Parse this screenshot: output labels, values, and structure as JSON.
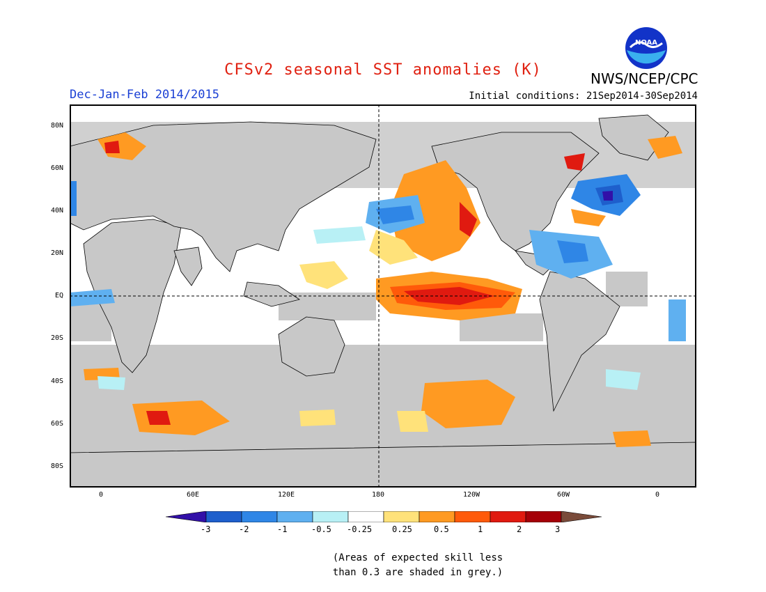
{
  "header": {
    "title": "CFSv2 seasonal SST anomalies (K)",
    "season": "Dec-Jan-Feb 2014/2015",
    "initial_conditions": "Initial conditions: 21Sep2014-30Sep2014",
    "agency": "NWS/NCEP/CPC",
    "logo_text": "NOAA"
  },
  "map": {
    "lat_labels": [
      "80N",
      "60N",
      "40N",
      "20N",
      "EQ",
      "20S",
      "40S",
      "60S",
      "80S"
    ],
    "lon_labels": [
      "0",
      "60E",
      "120E",
      "180",
      "120W",
      "60W",
      "0"
    ],
    "reference_lines": [
      "equator",
      "dateline"
    ],
    "colors": {
      "land_skill_grey": "#c8c8c8",
      "ocean_white": "#ffffff",
      "map_border": "#000000"
    }
  },
  "colorbar": {
    "labels": [
      "-3",
      "-2",
      "-1",
      "-0.5",
      "-0.25",
      "0.25",
      "0.5",
      "1",
      "2",
      "3"
    ],
    "colors": [
      "#3210a8",
      "#1e5fcc",
      "#2f86e6",
      "#5fb0f0",
      "#b8f0f5",
      "#ffffff",
      "#ffe27a",
      "#ff9a22",
      "#ff5a0a",
      "#e01a10",
      "#a50008",
      "#7a4b3a"
    ]
  },
  "footnote": {
    "line1": "(Areas of expected skill less",
    "line2": "than 0.3 are shaded in grey.)"
  }
}
